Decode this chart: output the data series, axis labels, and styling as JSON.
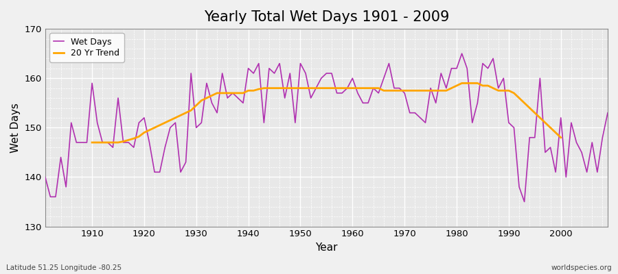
{
  "title": "Yearly Total Wet Days 1901 - 2009",
  "xlabel": "Year",
  "ylabel": "Wet Days",
  "fig_bg_color": "#f0f0f0",
  "plot_bg_color": "#e8e8e8",
  "grid_color": "#ffffff",
  "wet_days_color": "#b030b0",
  "trend_color": "#ffa500",
  "wet_days_label": "Wet Days",
  "trend_label": "20 Yr Trend",
  "ylim": [
    130,
    170
  ],
  "xlim": [
    1901,
    2009
  ],
  "yticks": [
    130,
    140,
    150,
    160,
    170
  ],
  "xticks": [
    1910,
    1920,
    1930,
    1940,
    1950,
    1960,
    1970,
    1980,
    1990,
    2000
  ],
  "bottom_left_text": "Latitude 51.25 Longitude -80.25",
  "bottom_right_text": "worldspecies.org",
  "wet_days": {
    "years": [
      1901,
      1902,
      1903,
      1904,
      1905,
      1906,
      1907,
      1908,
      1909,
      1910,
      1911,
      1912,
      1913,
      1914,
      1915,
      1916,
      1917,
      1918,
      1919,
      1920,
      1921,
      1922,
      1923,
      1924,
      1925,
      1926,
      1927,
      1928,
      1929,
      1930,
      1931,
      1932,
      1933,
      1934,
      1935,
      1936,
      1937,
      1938,
      1939,
      1940,
      1941,
      1942,
      1943,
      1944,
      1945,
      1946,
      1947,
      1948,
      1949,
      1950,
      1951,
      1952,
      1953,
      1954,
      1955,
      1956,
      1957,
      1958,
      1959,
      1960,
      1961,
      1962,
      1963,
      1964,
      1965,
      1966,
      1967,
      1968,
      1969,
      1970,
      1971,
      1972,
      1973,
      1974,
      1975,
      1976,
      1977,
      1978,
      1979,
      1980,
      1981,
      1982,
      1983,
      1984,
      1985,
      1986,
      1987,
      1988,
      1989,
      1990,
      1991,
      1992,
      1993,
      1994,
      1995,
      1996,
      1997,
      1998,
      1999,
      2000,
      2001,
      2002,
      2003,
      2004,
      2005,
      2006,
      2007,
      2008,
      2009
    ],
    "values": [
      140,
      136,
      136,
      144,
      138,
      151,
      147,
      147,
      147,
      159,
      151,
      147,
      147,
      146,
      156,
      147,
      147,
      146,
      151,
      152,
      147,
      141,
      141,
      146,
      150,
      151,
      141,
      143,
      161,
      150,
      151,
      159,
      155,
      153,
      161,
      156,
      157,
      156,
      155,
      162,
      161,
      163,
      151,
      162,
      161,
      163,
      156,
      161,
      151,
      163,
      161,
      156,
      158,
      160,
      161,
      161,
      157,
      157,
      158,
      160,
      157,
      155,
      155,
      158,
      157,
      160,
      163,
      158,
      158,
      157,
      153,
      153,
      152,
      151,
      158,
      155,
      161,
      158,
      162,
      162,
      165,
      162,
      151,
      155,
      163,
      162,
      164,
      158,
      160,
      151,
      150,
      138,
      135,
      148,
      148,
      160,
      145,
      146,
      141,
      152,
      140,
      151,
      147,
      145,
      141,
      147,
      141,
      148,
      153
    ]
  },
  "trend": {
    "years": [
      1910,
      1911,
      1912,
      1913,
      1914,
      1915,
      1916,
      1917,
      1918,
      1919,
      1920,
      1921,
      1922,
      1923,
      1924,
      1925,
      1926,
      1927,
      1928,
      1929,
      1930,
      1931,
      1932,
      1933,
      1934,
      1935,
      1936,
      1937,
      1938,
      1939,
      1940,
      1941,
      1942,
      1943,
      1944,
      1945,
      1946,
      1947,
      1948,
      1949,
      1950,
      1951,
      1952,
      1953,
      1954,
      1955,
      1956,
      1957,
      1958,
      1959,
      1960,
      1961,
      1962,
      1963,
      1964,
      1965,
      1966,
      1967,
      1968,
      1969,
      1970,
      1971,
      1972,
      1973,
      1974,
      1975,
      1976,
      1977,
      1978,
      1979,
      1980,
      1981,
      1982,
      1983,
      1984,
      1985,
      1986,
      1987,
      1988,
      1989,
      1990,
      1991,
      1992,
      1993,
      1994,
      1995,
      1996,
      1997,
      1998,
      1999,
      2000
    ],
    "values": [
      147.0,
      147.0,
      147.0,
      147.0,
      147.0,
      147.0,
      147.2,
      147.5,
      147.8,
      148.2,
      149.0,
      149.5,
      150.0,
      150.5,
      151.0,
      151.5,
      152.0,
      152.5,
      153.0,
      153.5,
      154.5,
      155.5,
      156.0,
      156.5,
      157.0,
      157.0,
      157.0,
      157.0,
      157.0,
      157.0,
      157.5,
      157.5,
      157.8,
      158.0,
      158.0,
      158.0,
      158.0,
      158.0,
      158.0,
      158.0,
      158.0,
      158.0,
      158.0,
      158.0,
      158.0,
      158.0,
      158.0,
      158.0,
      158.0,
      158.0,
      158.0,
      158.0,
      158.0,
      158.0,
      158.0,
      158.0,
      157.5,
      157.5,
      157.5,
      157.5,
      157.5,
      157.5,
      157.5,
      157.5,
      157.5,
      157.5,
      157.5,
      157.5,
      157.5,
      158.0,
      158.5,
      159.0,
      159.0,
      159.0,
      159.0,
      158.5,
      158.5,
      158.0,
      157.5,
      157.5,
      157.5,
      157.0,
      156.0,
      155.0,
      154.0,
      153.0,
      152.0,
      151.0,
      150.0,
      149.0,
      148.0
    ]
  }
}
